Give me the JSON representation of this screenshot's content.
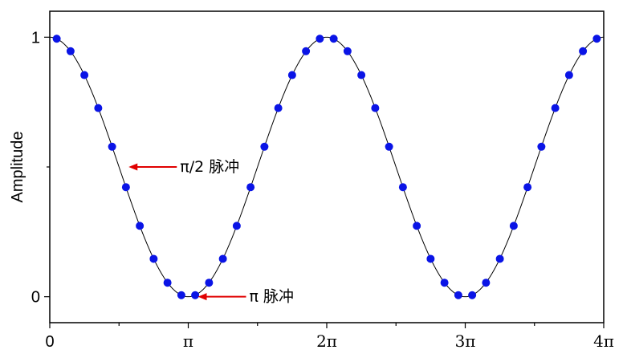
{
  "chart_data": {
    "type": "scatter",
    "ylabel": "Amplitude",
    "xlabel": "",
    "xlim": [
      0,
      4
    ],
    "ylim": [
      -0.1,
      1.1
    ],
    "x_unit": "π",
    "x_ticks": [
      {
        "value": 0,
        "label": "0"
      },
      {
        "value": 1,
        "label": "π"
      },
      {
        "value": 2,
        "label": "2π"
      },
      {
        "value": 3,
        "label": "3π"
      },
      {
        "value": 4,
        "label": "4π"
      }
    ],
    "y_ticks": [
      {
        "value": 0,
        "label": "0"
      },
      {
        "value": 0.5,
        "label": ""
      },
      {
        "value": 1,
        "label": "1"
      }
    ],
    "line": {
      "description": "fitted curve",
      "formula": "y = (1 + cos(x)) / 2",
      "color": "#000000"
    },
    "series": [
      {
        "marker_color": "#0a14e6",
        "x": [
          0.05,
          0.15,
          0.25,
          0.35,
          0.45,
          0.55,
          0.65,
          0.75,
          0.85,
          0.95,
          1.05,
          1.15,
          1.25,
          1.35,
          1.45,
          1.55,
          1.65,
          1.75,
          1.85,
          1.95,
          2.05,
          2.15,
          2.25,
          2.35,
          2.45,
          2.55,
          2.65,
          2.75,
          2.85,
          2.95,
          3.05,
          3.15,
          3.25,
          3.35,
          3.45,
          3.55,
          3.65,
          3.75,
          3.85,
          3.95
        ],
        "y": [
          0.994,
          0.946,
          0.854,
          0.727,
          0.578,
          0.422,
          0.273,
          0.146,
          0.054,
          0.006,
          0.006,
          0.054,
          0.146,
          0.273,
          0.422,
          0.578,
          0.727,
          0.854,
          0.946,
          0.994,
          0.994,
          0.946,
          0.854,
          0.727,
          0.578,
          0.422,
          0.273,
          0.146,
          0.054,
          0.006,
          0.006,
          0.054,
          0.146,
          0.273,
          0.422,
          0.578,
          0.727,
          0.854,
          0.946,
          0.994
        ]
      }
    ],
    "annotations": [
      {
        "text": "π/2 脉冲",
        "x": 0.5,
        "y": 0.5,
        "arrow_color": "#e00000"
      },
      {
        "text": "π 脉冲",
        "x": 1.0,
        "y": 0.0,
        "arrow_color": "#e00000"
      }
    ]
  }
}
